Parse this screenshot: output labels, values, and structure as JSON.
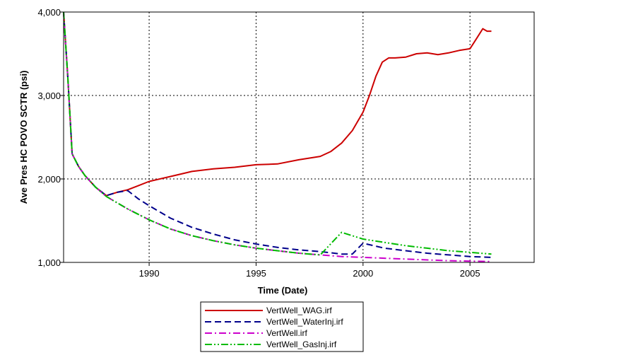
{
  "chart_data": {
    "type": "line",
    "xlabel": "Time (Date)",
    "ylabel": "Ave Pres HC POVO SCTR (psi)",
    "xlim": [
      1986.0,
      2008.0
    ],
    "ylim": [
      1000,
      4000
    ],
    "x_ticks": [
      1990,
      1995,
      2000,
      2005
    ],
    "x_tick_labels": [
      "1990",
      "1995",
      "2000",
      "2005"
    ],
    "y_ticks": [
      1000,
      2000,
      3000,
      4000
    ],
    "y_tick_labels": [
      "1,000",
      "2,000",
      "3,000",
      "4,000"
    ],
    "grid": true,
    "legend_position": "bottom-center",
    "series": [
      {
        "name": "VertWell_WAG.irf",
        "color": "#cc0000",
        "dash": "solid",
        "x": [
          1986.0,
          1986.2,
          1986.4,
          1986.7,
          1987.0,
          1987.5,
          1988.0,
          1988.5,
          1989.0,
          1989.5,
          1990.0,
          1991.0,
          1992.0,
          1993.0,
          1994.0,
          1995.0,
          1996.0,
          1997.0,
          1998.0,
          1998.5,
          1999.0,
          1999.5,
          2000.0,
          2000.3,
          2000.6,
          2000.9,
          2001.2,
          2001.5,
          2002.0,
          2002.5,
          2003.0,
          2003.5,
          2004.0,
          2004.5,
          2005.0,
          2005.3,
          2005.6,
          2005.8,
          2006.0
        ],
        "y": [
          4000,
          3200,
          2300,
          2150,
          2040,
          1900,
          1800,
          1840,
          1870,
          1920,
          1970,
          2030,
          2090,
          2120,
          2140,
          2170,
          2180,
          2230,
          2270,
          2330,
          2430,
          2580,
          2800,
          3000,
          3230,
          3400,
          3450,
          3450,
          3460,
          3500,
          3510,
          3490,
          3510,
          3540,
          3560,
          3680,
          3800,
          3770,
          3770
        ]
      },
      {
        "name": "VertWell_WaterInj.irf",
        "color": "#00008b",
        "dash": "dashed",
        "x": [
          1986.0,
          1986.2,
          1986.4,
          1986.7,
          1987.0,
          1987.5,
          1988.0,
          1988.5,
          1989.0,
          1989.5,
          1990.0,
          1991.0,
          1992.0,
          1993.0,
          1994.0,
          1995.0,
          1996.0,
          1997.0,
          1998.0,
          1999.0,
          1999.5,
          2000.0,
          2000.5,
          2001.0,
          2002.0,
          2003.0,
          2004.0,
          2005.0,
          2006.0
        ],
        "y": [
          4000,
          3200,
          2300,
          2150,
          2040,
          1900,
          1800,
          1840,
          1860,
          1760,
          1680,
          1530,
          1420,
          1340,
          1270,
          1220,
          1180,
          1150,
          1130,
          1100,
          1100,
          1230,
          1200,
          1170,
          1140,
          1110,
          1090,
          1070,
          1060
        ]
      },
      {
        "name": "VertWell.irf",
        "color": "#cc00cc",
        "dash": "dashdot",
        "x": [
          1986.0,
          1986.2,
          1986.4,
          1986.7,
          1987.0,
          1987.5,
          1988.0,
          1989.0,
          1990.0,
          1991.0,
          1992.0,
          1993.0,
          1994.0,
          1995.0,
          1996.0,
          1997.0,
          1998.0,
          1999.0,
          2000.0,
          2001.0,
          2002.0,
          2003.0,
          2004.0,
          2005.0,
          2006.0
        ],
        "y": [
          4000,
          3200,
          2300,
          2150,
          2040,
          1900,
          1790,
          1640,
          1510,
          1400,
          1320,
          1260,
          1210,
          1170,
          1140,
          1110,
          1090,
          1070,
          1060,
          1050,
          1040,
          1030,
          1020,
          1015,
          1010
        ]
      },
      {
        "name": "VertWell_GasInj.irf",
        "color": "#00bb00",
        "dash": "dashdotdot",
        "x": [
          1986.0,
          1986.2,
          1986.4,
          1986.7,
          1987.0,
          1987.5,
          1988.0,
          1989.0,
          1990.0,
          1991.0,
          1992.0,
          1993.0,
          1994.0,
          1995.0,
          1996.0,
          1997.0,
          1998.0,
          1999.0,
          2000.0,
          2001.0,
          2002.0,
          2003.0,
          2004.0,
          2005.0,
          2006.0
        ],
        "y": [
          4000,
          3200,
          2300,
          2150,
          2040,
          1900,
          1790,
          1640,
          1510,
          1400,
          1320,
          1260,
          1210,
          1170,
          1140,
          1110,
          1090,
          1360,
          1280,
          1240,
          1200,
          1170,
          1140,
          1120,
          1100
        ]
      }
    ]
  }
}
